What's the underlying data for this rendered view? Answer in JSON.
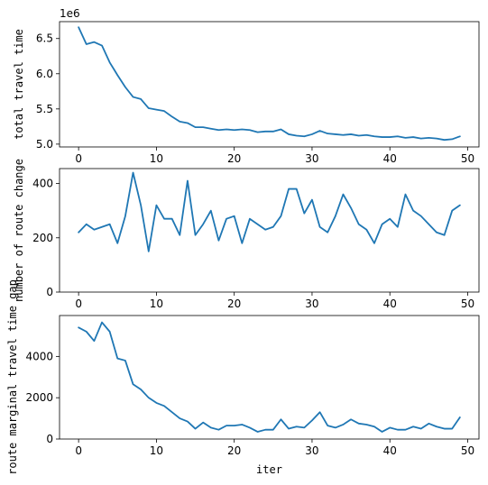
{
  "chart_data": [
    {
      "type": "line",
      "ylabel": "total travel time",
      "xlabel": "",
      "offset_label": "1e6",
      "xlim": [
        -2.45,
        51.45
      ],
      "ylim": [
        4.96,
        6.74
      ],
      "xticks": [
        0,
        10,
        20,
        30,
        40,
        50
      ],
      "yticks": [
        5.0,
        5.5,
        6.0,
        6.5
      ],
      "ytick_labels": [
        "5.0",
        "5.5",
        "6.0",
        "6.5"
      ],
      "color": "#1f77b4",
      "grid": false,
      "x": [
        0,
        1,
        2,
        3,
        4,
        5,
        6,
        7,
        8,
        9,
        10,
        11,
        12,
        13,
        14,
        15,
        16,
        17,
        18,
        19,
        20,
        21,
        22,
        23,
        24,
        25,
        26,
        27,
        28,
        29,
        30,
        31,
        32,
        33,
        34,
        35,
        36,
        37,
        38,
        39,
        40,
        41,
        42,
        43,
        44,
        45,
        46,
        47,
        48,
        49
      ],
      "values": [
        6.66,
        6.42,
        6.45,
        6.4,
        6.16,
        5.98,
        5.81,
        5.67,
        5.64,
        5.51,
        5.49,
        5.47,
        5.39,
        5.32,
        5.3,
        5.24,
        5.24,
        5.22,
        5.2,
        5.21,
        5.2,
        5.21,
        5.2,
        5.17,
        5.18,
        5.18,
        5.21,
        5.14,
        5.12,
        5.11,
        5.14,
        5.19,
        5.15,
        5.14,
        5.13,
        5.14,
        5.12,
        5.13,
        5.11,
        5.1,
        5.1,
        5.11,
        5.09,
        5.1,
        5.08,
        5.09,
        5.08,
        5.06,
        5.07,
        5.11
      ]
    },
    {
      "type": "line",
      "ylabel": "number of route change",
      "xlabel": "",
      "xlim": [
        -2.45,
        51.45
      ],
      "ylim": [
        0,
        455
      ],
      "xticks": [
        0,
        10,
        20,
        30,
        40,
        50
      ],
      "yticks": [
        0,
        200,
        400
      ],
      "ytick_labels": [
        "0",
        "200",
        "400"
      ],
      "color": "#1f77b4",
      "grid": false,
      "x": [
        0,
        1,
        2,
        3,
        4,
        5,
        6,
        7,
        8,
        9,
        10,
        11,
        12,
        13,
        14,
        15,
        16,
        17,
        18,
        19,
        20,
        21,
        22,
        23,
        24,
        25,
        26,
        27,
        28,
        29,
        30,
        31,
        32,
        33,
        34,
        35,
        36,
        37,
        38,
        39,
        40,
        41,
        42,
        43,
        44,
        45,
        46,
        47,
        48,
        49
      ],
      "values": [
        220,
        250,
        230,
        240,
        250,
        180,
        280,
        440,
        320,
        150,
        320,
        270,
        270,
        210,
        410,
        210,
        250,
        300,
        190,
        270,
        280,
        180,
        270,
        250,
        230,
        240,
        280,
        380,
        380,
        290,
        340,
        240,
        220,
        280,
        360,
        310,
        250,
        230,
        180,
        250,
        270,
        240,
        360,
        300,
        280,
        250,
        220,
        210,
        300,
        320
      ]
    },
    {
      "type": "line",
      "ylabel": "route marginal travel time gap",
      "xlabel": "iter",
      "xlim": [
        -2.45,
        51.45
      ],
      "ylim": [
        0,
        5980
      ],
      "xticks": [
        0,
        10,
        20,
        30,
        40,
        50
      ],
      "yticks": [
        0,
        2000,
        4000
      ],
      "ytick_labels": [
        "0",
        "2000",
        "4000"
      ],
      "color": "#1f77b4",
      "grid": false,
      "x": [
        0,
        1,
        2,
        3,
        4,
        5,
        6,
        7,
        8,
        9,
        10,
        11,
        12,
        13,
        14,
        15,
        16,
        17,
        18,
        19,
        20,
        21,
        22,
        23,
        24,
        25,
        26,
        27,
        28,
        29,
        30,
        31,
        32,
        33,
        34,
        35,
        36,
        37,
        38,
        39,
        40,
        41,
        42,
        43,
        44,
        45,
        46,
        47,
        48,
        49
      ],
      "values": [
        5400,
        5200,
        4750,
        5650,
        5200,
        3900,
        3800,
        2650,
        2400,
        2000,
        1750,
        1600,
        1300,
        1000,
        850,
        500,
        800,
        550,
        450,
        650,
        650,
        700,
        550,
        350,
        450,
        450,
        950,
        500,
        600,
        550,
        900,
        1300,
        650,
        550,
        700,
        950,
        750,
        700,
        600,
        350,
        550,
        450,
        450,
        600,
        500,
        750,
        600,
        500,
        500,
        1050
      ]
    }
  ]
}
